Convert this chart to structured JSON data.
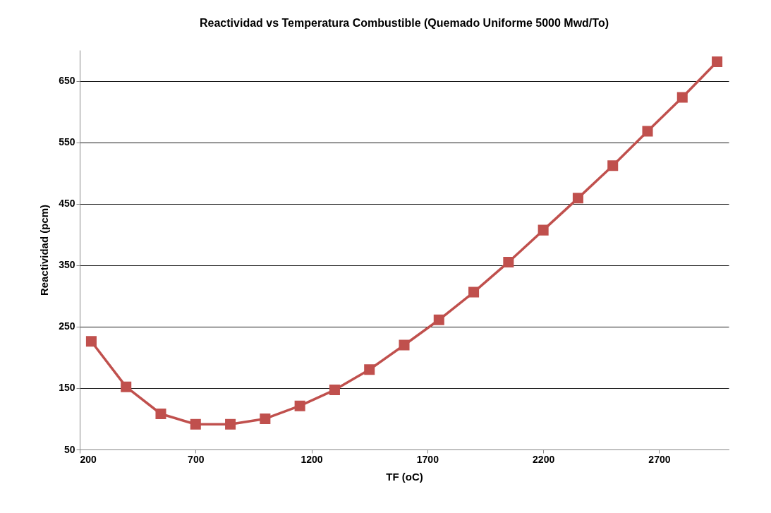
{
  "chart_data": {
    "type": "line",
    "title": "Reactividad vs Temperatura Combustible (Quemado Uniforme 5000 Mwd/To)",
    "xlabel": "TF (oC)",
    "ylabel": "Reactividad (pcm)",
    "x": [
      250,
      400,
      550,
      700,
      850,
      1000,
      1150,
      1300,
      1450,
      1600,
      1750,
      1900,
      2050,
      2200,
      2350,
      2500,
      2650,
      2800,
      2950
    ],
    "series": [
      {
        "color": "#c0504d",
        "values": [
          226,
          152,
          108,
          91,
          91,
          100,
          121,
          147,
          180,
          220,
          261,
          306,
          355,
          407,
          459,
          512,
          568,
          623,
          681
        ]
      }
    ],
    "xlim": [
      200,
      3000
    ],
    "xticks": [
      200,
      700,
      1200,
      1700,
      2200,
      2700
    ],
    "ylim": [
      50,
      700
    ],
    "yticks": [
      50,
      150,
      250,
      350,
      450,
      550,
      650
    ],
    "grid": "y",
    "marker": "square",
    "line_style": "solid"
  }
}
